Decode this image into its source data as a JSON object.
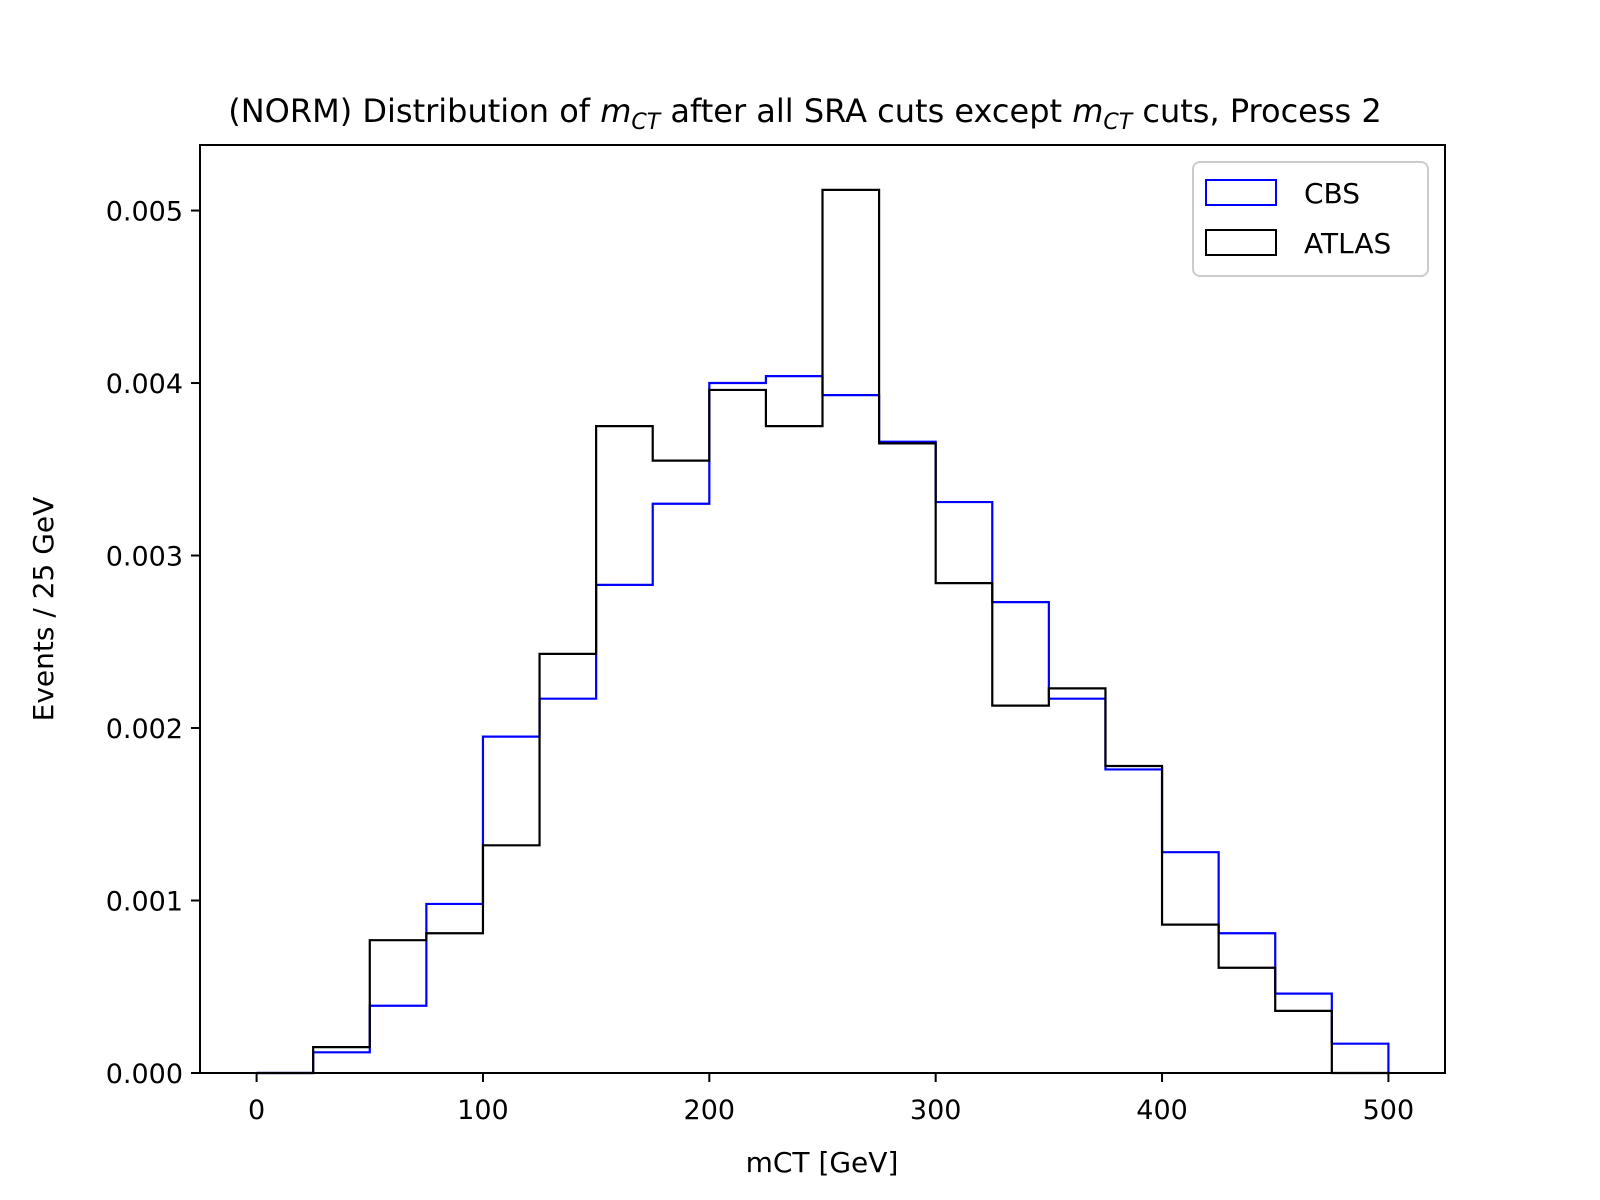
{
  "chart_data": {
    "type": "histogram-step",
    "title": {
      "prefix": "(NORM) Distribution of ",
      "var1": "m",
      "var1_sub": "CT",
      "middle": " after all SRA cuts except ",
      "var2": "m",
      "var2_sub": "CT",
      "suffix": " cuts, Process 2"
    },
    "xlabel": "mCT [GeV]",
    "ylabel": "Events / 25 GeV",
    "xlim": [
      -25,
      525
    ],
    "ylim": [
      0,
      0.00538
    ],
    "xticks": [
      0,
      100,
      200,
      300,
      400,
      500
    ],
    "xtick_labels": [
      "0",
      "100",
      "200",
      "300",
      "400",
      "500"
    ],
    "yticks": [
      0,
      0.001,
      0.002,
      0.003,
      0.004,
      0.005
    ],
    "ytick_labels": [
      "0.000",
      "0.001",
      "0.002",
      "0.003",
      "0.004",
      "0.005"
    ],
    "bin_edges": [
      0,
      25,
      50,
      75,
      100,
      125,
      150,
      175,
      200,
      225,
      250,
      275,
      300,
      325,
      350,
      375,
      400,
      425,
      450,
      475,
      500
    ],
    "grid": false,
    "legend_position": "top-right",
    "series": [
      {
        "name": "CBS",
        "color": "#0000ff",
        "values": [
          0.0,
          0.00012,
          0.00039,
          0.00098,
          0.00195,
          0.00217,
          0.00283,
          0.0033,
          0.004,
          0.00404,
          0.00393,
          0.00366,
          0.00331,
          0.00273,
          0.00217,
          0.00176,
          0.00128,
          0.00081,
          0.00046,
          0.00017
        ]
      },
      {
        "name": "ATLAS",
        "color": "#000000",
        "values": [
          0.0,
          0.00015,
          0.00077,
          0.00081,
          0.00132,
          0.00243,
          0.00375,
          0.00355,
          0.00396,
          0.00375,
          0.00512,
          0.00365,
          0.00284,
          0.00213,
          0.00223,
          0.00178,
          0.00086,
          0.00061,
          0.00036,
          0.0
        ]
      }
    ]
  }
}
